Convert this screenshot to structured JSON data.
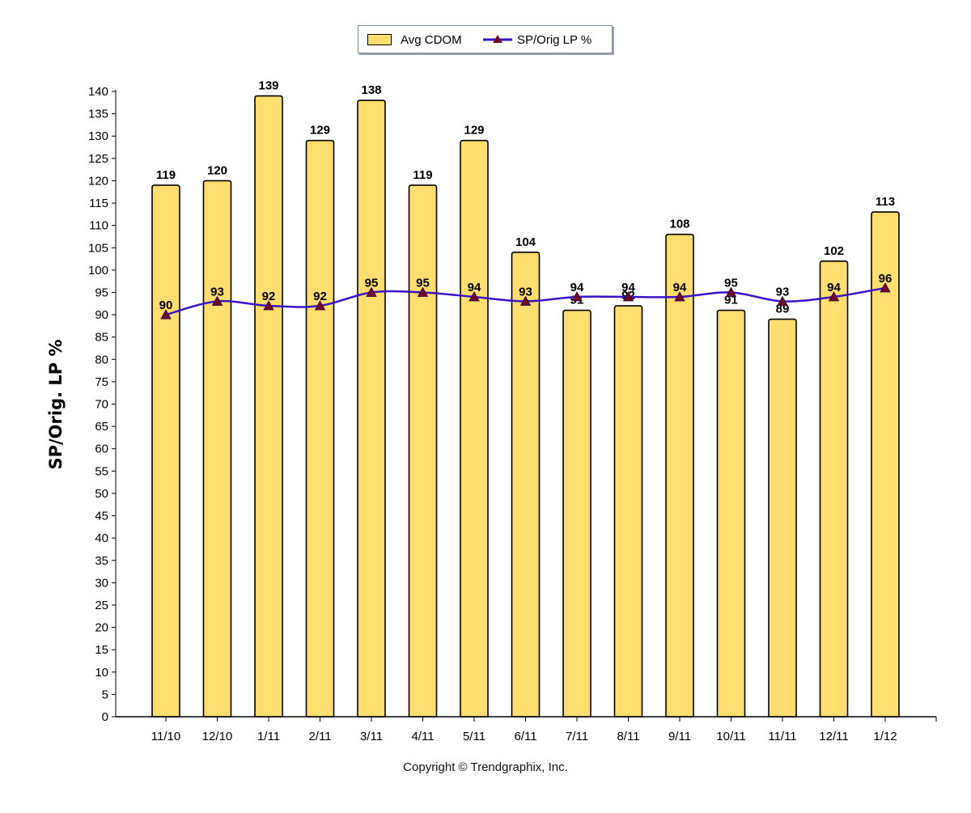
{
  "chart_data": {
    "type": "bar",
    "categories": [
      "11/10",
      "12/10",
      "1/11",
      "2/11",
      "3/11",
      "4/11",
      "5/11",
      "6/11",
      "7/11",
      "8/11",
      "9/11",
      "10/11",
      "11/11",
      "12/11",
      "1/12"
    ],
    "series": [
      {
        "name": "Avg CDOM",
        "kind": "bar",
        "color": "#ffdd6e",
        "values": [
          119,
          120,
          139,
          129,
          138,
          119,
          129,
          104,
          91,
          92,
          108,
          91,
          89,
          102,
          113
        ],
        "labels": [
          "119",
          "120",
          "139",
          "129",
          "138",
          "119",
          "129",
          "104",
          "91",
          "92",
          "108",
          "91",
          "89",
          "102",
          "113"
        ]
      },
      {
        "name": "SP/Orig LP %",
        "kind": "line",
        "color": "#3a12c8",
        "marker": "triangle",
        "marker_color": "#6e0a2a",
        "values": [
          90,
          93,
          92,
          92,
          95,
          95,
          94,
          93,
          94,
          94,
          94,
          95,
          93,
          94,
          96
        ],
        "labels": [
          "90",
          "93",
          "92",
          "92",
          "95",
          "95",
          "94",
          "93",
          "94",
          "94",
          "94",
          "95",
          "93",
          "94",
          "96"
        ]
      }
    ],
    "ylabel": "SP/Orig. LP %",
    "ylim": [
      0,
      140
    ],
    "ytick_step": 5,
    "yticks": [
      "0",
      "5",
      "10",
      "15",
      "20",
      "25",
      "30",
      "35",
      "40",
      "45",
      "50",
      "55",
      "60",
      "65",
      "70",
      "75",
      "80",
      "85",
      "90",
      "95",
      "100",
      "105",
      "110",
      "115",
      "120",
      "125",
      "130",
      "135",
      "140"
    ],
    "grid": false,
    "legend": "top-center"
  },
  "legend": {
    "bar_label": "Avg CDOM",
    "line_label": "SP/Orig LP %"
  },
  "footer": {
    "copyright": "Copyright © Trendgraphix, Inc."
  }
}
